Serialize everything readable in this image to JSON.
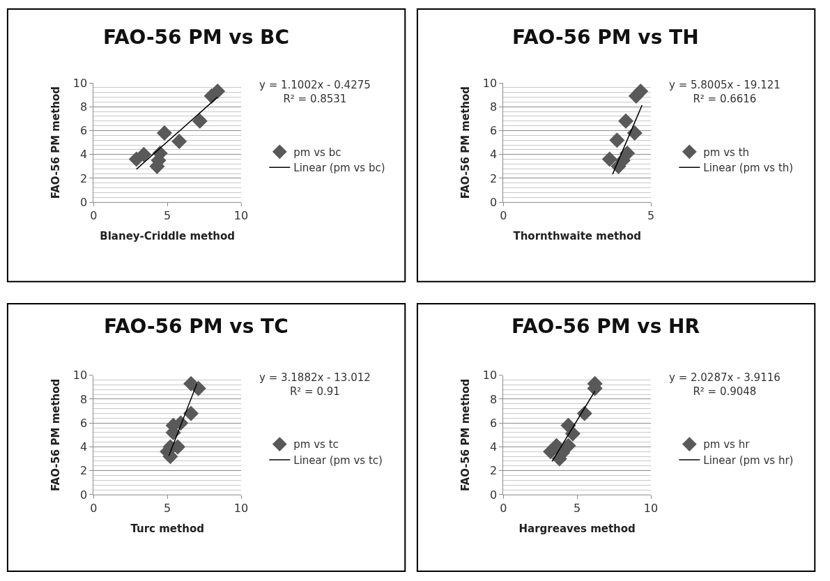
{
  "chart_data": [
    {
      "type": "scatter",
      "title": "FAO-56 PM vs BC",
      "xlabel": "Blaney-Criddle method",
      "ylabel": "FAO-56 PM method",
      "xlim": [
        0,
        10
      ],
      "xticks": [
        0,
        5,
        10
      ],
      "ylim": [
        0,
        10
      ],
      "yticks": [
        0,
        2,
        4,
        6,
        8,
        10
      ],
      "grid": "y",
      "legend": "right",
      "marker": "diamond",
      "annotations": [
        "y = 1.1002x - 0.4275",
        "R² = 0.8531"
      ],
      "series": [
        {
          "name": "pm vs bc",
          "color": "#595959",
          "x": [
            2.9,
            3.4,
            4.3,
            4.4,
            4.5,
            4.8,
            5.8,
            7.2,
            8.0,
            8.4
          ],
          "values": [
            3.6,
            4.0,
            3.0,
            3.5,
            4.1,
            5.8,
            5.1,
            6.8,
            8.9,
            9.3
          ]
        },
        {
          "name": "Linear (pm vs bc)",
          "type": "line",
          "marker": "none",
          "line_style": "solid",
          "color": "#000000",
          "x": [
            2.9,
            8.4
          ],
          "values": [
            2.76,
            8.81
          ]
        }
      ]
    },
    {
      "type": "scatter",
      "title": "FAO-56 PM vs TH",
      "xlabel": "Thornthwaite method",
      "ylabel": "FAO-56 PM method",
      "xlim": [
        0,
        5
      ],
      "xticks": [
        0,
        5
      ],
      "ylim": [
        0,
        10
      ],
      "yticks": [
        0,
        2,
        4,
        6,
        8,
        10
      ],
      "grid": "y",
      "legend": "right",
      "marker": "diamond",
      "annotations": [
        "y = 5.8005x - 19.121",
        "R² = 0.6616"
      ],
      "series": [
        {
          "name": "pm vs th",
          "color": "#595959",
          "x": [
            3.6,
            3.85,
            3.9,
            4.05,
            4.2,
            4.15,
            4.45,
            4.5,
            4.65
          ],
          "values": [
            3.6,
            5.2,
            3.0,
            3.5,
            4.1,
            6.8,
            5.8,
            8.9,
            9.3
          ]
        },
        {
          "name": "Linear (pm vs th)",
          "type": "line",
          "marker": "none",
          "line_style": "solid",
          "color": "#000000",
          "x": [
            3.7,
            4.7
          ],
          "values": [
            2.34,
            8.14
          ]
        }
      ]
    },
    {
      "type": "scatter",
      "title": "FAO-56 PM vs TC",
      "xlabel": "Turc method",
      "ylabel": "FAO-56 PM method",
      "xlim": [
        0,
        10
      ],
      "xticks": [
        0,
        5,
        10
      ],
      "ylim": [
        0,
        10
      ],
      "yticks": [
        0,
        2,
        4,
        6,
        8,
        10
      ],
      "grid": "y",
      "legend": "right",
      "marker": "diamond",
      "annotations": [
        "y = 3.1882x - 13.012",
        "R² = 0.91"
      ],
      "series": [
        {
          "name": "pm vs tc",
          "color": "#595959",
          "x": [
            5.2,
            5.0,
            5.2,
            5.7,
            5.4,
            5.4,
            5.9,
            6.6,
            6.6,
            7.1
          ],
          "values": [
            3.2,
            3.6,
            4.0,
            4.0,
            5.2,
            5.8,
            6.0,
            6.8,
            9.3,
            8.9
          ]
        },
        {
          "name": "Linear (pm vs tc)",
          "type": "line",
          "marker": "none",
          "line_style": "solid",
          "color": "#000000",
          "x": [
            5.1,
            7.0
          ],
          "values": [
            3.25,
            9.3
          ]
        }
      ]
    },
    {
      "type": "scatter",
      "title": "FAO-56 PM vs HR",
      "xlabel": "Hargreaves method",
      "ylabel": "FAO-56 PM method",
      "xlim": [
        0,
        10
      ],
      "xticks": [
        0,
        5,
        10
      ],
      "ylim": [
        0,
        10
      ],
      "yticks": [
        0,
        2,
        4,
        6,
        8,
        10
      ],
      "grid": "y",
      "legend": "right",
      "marker": "diamond",
      "annotations": [
        "y = 2.0287x - 3.9116",
        "R² = 0.9048"
      ],
      "series": [
        {
          "name": "pm vs hr",
          "color": "#595959",
          "x": [
            3.2,
            3.6,
            3.8,
            4.0,
            4.4,
            4.4,
            4.7,
            5.5,
            6.2,
            6.2
          ],
          "values": [
            3.6,
            4.1,
            3.0,
            3.5,
            4.1,
            5.8,
            5.1,
            6.8,
            8.9,
            9.3
          ]
        },
        {
          "name": "Linear (pm vs hr)",
          "type": "line",
          "marker": "none",
          "line_style": "solid",
          "color": "#000000",
          "x": [
            3.3,
            6.2
          ],
          "values": [
            2.78,
            8.67
          ]
        }
      ]
    }
  ]
}
